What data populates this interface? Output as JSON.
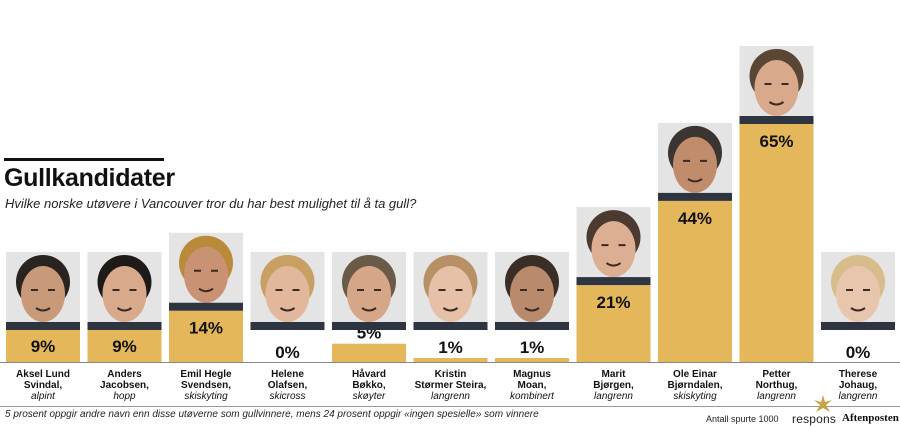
{
  "title": "Gullkandidater",
  "subtitle": "Hvilke norske utøvere i Vancouver tror du har best mulighet til å ta gull?",
  "footnote": "5 prosent oppgir andre navn enn disse utøverne som gullvinnere, mens 24 prosent oppgir «ingen spesielle» som vinnere",
  "sample_text": "Antall spurte 1000",
  "pollster": "respons",
  "newspaper": "Aftenposten",
  "colors": {
    "bar": "#e3b75a",
    "text": "#111111"
  },
  "chart_data": {
    "type": "bar",
    "title": "Gullkandidater",
    "subtitle": "Hvilke norske utøvere i Vancouver tror du har best mulighet til å ta gull?",
    "xlabel": "",
    "ylabel": "",
    "ylim": [
      0,
      65
    ],
    "grid": false,
    "categories": [
      "Aksel Lund Svindal",
      "Anders Jacobsen",
      "Emil Hegle Svendsen",
      "Helene Olafsen",
      "Håvard Bøkko",
      "Kristin Størmer Steira",
      "Magnus Moan",
      "Marit Bjørgen",
      "Ole Einar Bjørndalen",
      "Petter Northug",
      "Therese Johaug"
    ],
    "values": [
      9,
      9,
      14,
      0,
      5,
      1,
      1,
      21,
      44,
      65,
      0
    ],
    "value_labels": [
      "9%",
      "9%",
      "14%",
      "0%",
      "5%",
      "1%",
      "1%",
      "21%",
      "44%",
      "65%",
      "0%"
    ],
    "athletes": [
      {
        "name_lines": [
          "Aksel Lund",
          "Svindal,"
        ],
        "discipline": "alpint"
      },
      {
        "name_lines": [
          "Anders",
          "Jacobsen,"
        ],
        "discipline": "hopp"
      },
      {
        "name_lines": [
          "Emil Hegle",
          "Svendsen,"
        ],
        "discipline": "skiskyting"
      },
      {
        "name_lines": [
          "Helene",
          "Olafsen,"
        ],
        "discipline": "skicross"
      },
      {
        "name_lines": [
          "Håvard",
          "Bøkko,"
        ],
        "discipline": "skøyter"
      },
      {
        "name_lines": [
          "Kristin",
          "Størmer Steira,"
        ],
        "discipline": "langrenn"
      },
      {
        "name_lines": [
          "Magnus",
          "Moan,"
        ],
        "discipline": "kombinert"
      },
      {
        "name_lines": [
          "Marit",
          "Bjørgen,"
        ],
        "discipline": "langrenn"
      },
      {
        "name_lines": [
          "Ole Einar",
          "Bjørndalen,"
        ],
        "discipline": "skiskyting"
      },
      {
        "name_lines": [
          "Petter",
          "Northug,"
        ],
        "discipline": "langrenn"
      },
      {
        "name_lines": [
          "Therese",
          "Johaug,"
        ],
        "discipline": "langrenn"
      }
    ]
  }
}
